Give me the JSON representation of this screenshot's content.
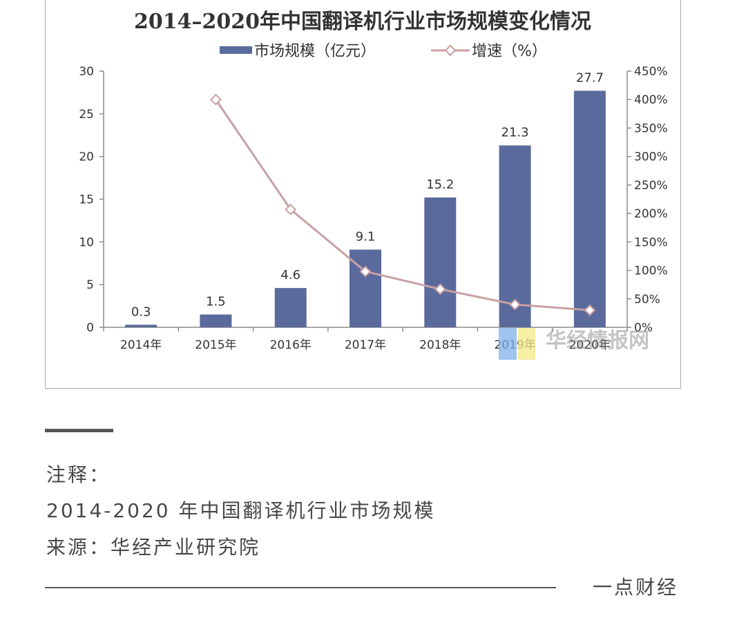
{
  "chart_data": {
    "type": "bar",
    "title": "2014–2020年中国翻译机行业市场规模变化情况",
    "categories": [
      "2014年",
      "2015年",
      "2016年",
      "2017年",
      "2018年",
      "2019年",
      "2020年"
    ],
    "series": [
      {
        "name": "市场规模（亿元）",
        "type": "bar",
        "axis": "left",
        "color": "#5a6a9c",
        "values": [
          0.3,
          1.5,
          4.6,
          9.1,
          15.2,
          21.3,
          27.7
        ]
      },
      {
        "name": "增速（%）",
        "type": "line",
        "axis": "right",
        "color": "#c9a0a4",
        "marker": "diamond",
        "values": [
          null,
          400,
          207,
          98,
          67,
          40,
          30
        ]
      }
    ],
    "ylim": [
      0,
      30
    ],
    "yticks": [
      0,
      5,
      10,
      15,
      20,
      25,
      30
    ],
    "y2lim": [
      0,
      450
    ],
    "y2ticks": [
      "0%",
      "50%",
      "100%",
      "150%",
      "200%",
      "250%",
      "300%",
      "350%",
      "400%",
      "450%"
    ],
    "grid": false,
    "legend": "top-center"
  },
  "watermark": {
    "text": "华经情报网",
    "logo_colors": [
      "#7fb0ea",
      "#f2ea86"
    ]
  },
  "article": {
    "note_label": "注释：",
    "caption": "2014-2020 年中国翻译机行业市场规模",
    "source": "来源：华经产业研究院",
    "footer_brand": "一点财经"
  },
  "colors": {
    "text": "#474747",
    "axis": "#8a8a8a",
    "rule": "#555555"
  }
}
